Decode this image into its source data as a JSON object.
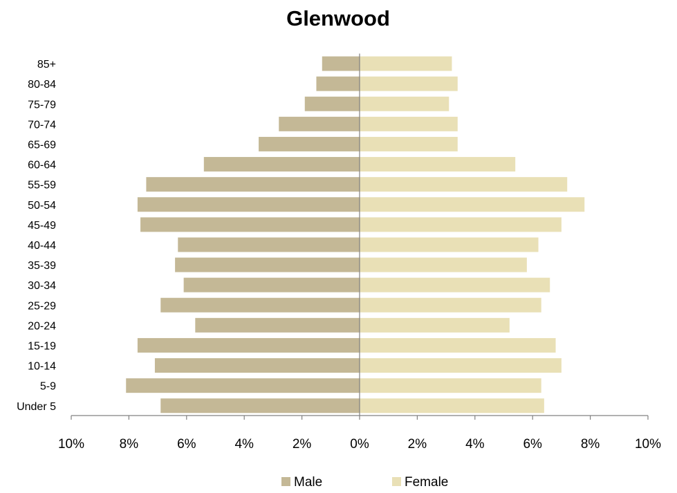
{
  "chart_data": {
    "type": "bar",
    "orientation": "horizontal",
    "title": "Glenwood",
    "categories": [
      "Under 5",
      "5-9",
      "10-14",
      "15-19",
      "20-24",
      "25-29",
      "30-34",
      "35-39",
      "40-44",
      "45-49",
      "50-54",
      "55-59",
      "60-64",
      "65-69",
      "70-74",
      "75-79",
      "80-84",
      "85+"
    ],
    "series": [
      {
        "name": "Male",
        "color": "#c4b896",
        "values": [
          6.9,
          8.1,
          7.1,
          7.7,
          5.7,
          6.9,
          6.1,
          6.4,
          6.3,
          7.6,
          7.7,
          7.4,
          5.4,
          3.5,
          2.8,
          1.9,
          1.5,
          1.3
        ]
      },
      {
        "name": "Female",
        "color": "#e9e0b6",
        "values": [
          6.4,
          6.3,
          7.0,
          6.8,
          5.2,
          6.3,
          6.6,
          5.8,
          6.2,
          7.0,
          7.8,
          7.2,
          5.4,
          3.4,
          3.4,
          3.1,
          3.4,
          3.2
        ]
      }
    ],
    "xlim": [
      -10,
      10
    ],
    "x_ticks": [
      "10%",
      "8%",
      "6%",
      "4%",
      "2%",
      "0%",
      "2%",
      "4%",
      "6%",
      "8%",
      "10%"
    ],
    "grid": false,
    "legend_position": "bottom"
  }
}
